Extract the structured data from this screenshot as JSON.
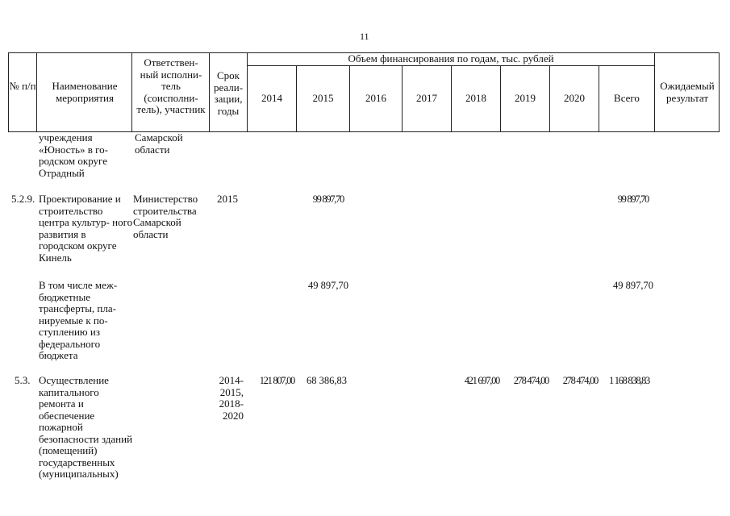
{
  "page_number": "11",
  "header": {
    "col_num": "№ п/п",
    "col_name": "Наименование мероприятия",
    "col_resp": "Ответствен- ный исполни- тель (соисполни- тель), участник",
    "col_term": "Срок реали- зации, годы",
    "col_funding": "Объем финансирования по годам, тыс. рублей",
    "years": [
      "2014",
      "2015",
      "2016",
      "2017",
      "2018",
      "2019",
      "2020"
    ],
    "col_total": "Всего",
    "col_result": "Ожидаемый результат"
  },
  "rows": {
    "cont": {
      "name": "учреждения «Юность» в го- родском округе Отрадный",
      "resp": "Самарской области"
    },
    "r529": {
      "num": "5.2.9.",
      "name": "Проектирование и строительство центра культур- ного развития в городском округе Кинель",
      "resp": "Министерство строительства Самарской области",
      "term": "2015",
      "y2015": "99 897,70",
      "total": "99 897,70"
    },
    "incl": {
      "name": "В том числе меж- бюджетные трансферты, пла- нируемые к по- ступлению из федерального бюджета",
      "y2015": "49 897,70",
      "total": "49 897,70"
    },
    "r53": {
      "num": "5.3.",
      "name": "Осуществление капитального ремонта и обеспечение пожарной безопасности зданий (помещений) государственных (муниципальных)",
      "term": "2014- 2015, 2018- 2020",
      "y2014": "121 807,00",
      "y2015": "68 386,83",
      "y2018": "421 697,00",
      "y2019": "278 474,00",
      "y2020": "278 474,00",
      "total": "1 168 838,83"
    }
  }
}
